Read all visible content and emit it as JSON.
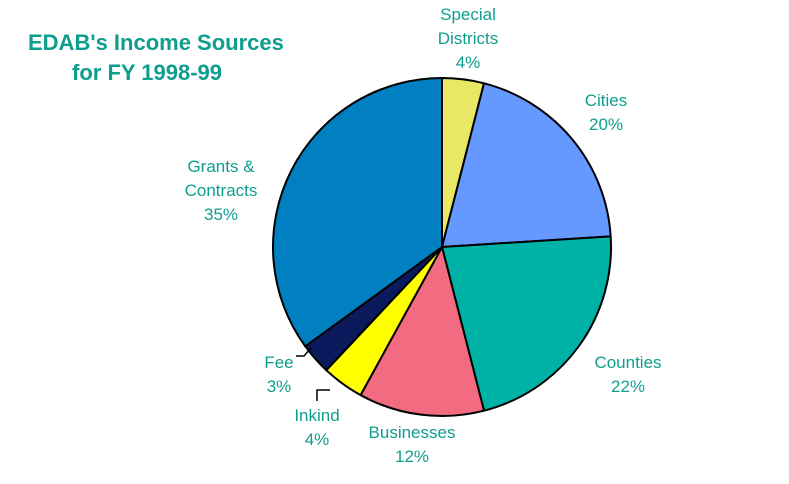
{
  "chart_data": {
    "type": "pie",
    "title": [
      "EDAB's Income Sources",
      "for FY 1998-99"
    ],
    "start_angle_deg": -90,
    "direction": "clockwise",
    "slices": [
      {
        "name": "Special Districts",
        "label_lines": [
          "Special",
          "Districts",
          "4%"
        ],
        "value": 4,
        "color": "#e8e864"
      },
      {
        "name": "Cities",
        "label_lines": [
          "Cities",
          "20%"
        ],
        "value": 20,
        "color": "#6699ff"
      },
      {
        "name": "Counties",
        "label_lines": [
          "Counties",
          "22%"
        ],
        "value": 22,
        "color": "#00b2a6"
      },
      {
        "name": "Businesses",
        "label_lines": [
          "Businesses",
          "12%"
        ],
        "value": 12,
        "color": "#f26b80"
      },
      {
        "name": "Inkind",
        "label_lines": [
          "Inkind",
          "4%"
        ],
        "value": 4,
        "color": "#ffff00"
      },
      {
        "name": "Fee",
        "label_lines": [
          "Fee",
          "3%"
        ],
        "value": 3,
        "color": "#0b1a5c"
      },
      {
        "name": "Grants & Contracts",
        "label_lines": [
          "Grants &",
          "Contracts",
          "35%"
        ],
        "value": 35,
        "color": "#0080c0"
      }
    ],
    "text_color": "#0e9e8e"
  }
}
